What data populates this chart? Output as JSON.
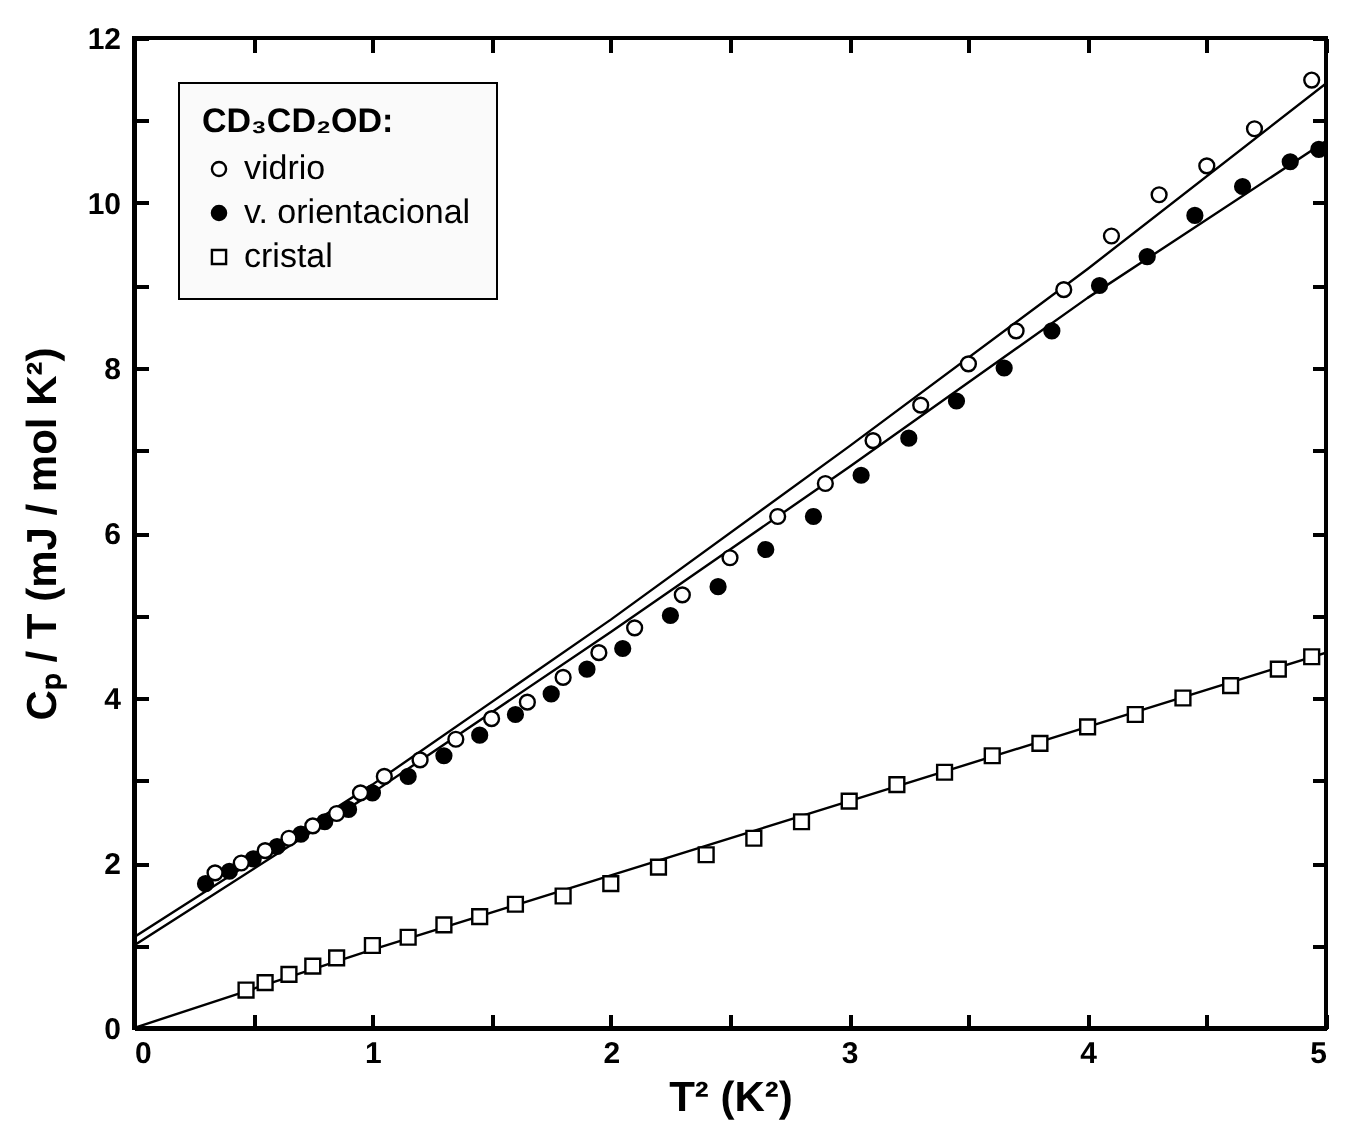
{
  "chart_data": {
    "type": "scatter",
    "xlabel": "T² (K²)",
    "ylabel": "Cₚ / T (mJ / mol K²)",
    "legend_title": "CD₃CD₂OD:",
    "legend": "top left",
    "grid": false,
    "xlim": [
      0,
      5
    ],
    "xticks": [
      0,
      {
        "value": 0.5,
        "label": null
      },
      1,
      {
        "value": 1.5,
        "label": null
      },
      2,
      {
        "value": 2.5,
        "label": null
      },
      3,
      {
        "value": 3.5,
        "label": null
      },
      4,
      {
        "value": 4.5,
        "label": null
      },
      5
    ],
    "ylim": [
      0,
      12
    ],
    "yticks": [
      0,
      {
        "value": 1,
        "label": null
      },
      2,
      {
        "value": 3,
        "label": null
      },
      4,
      {
        "value": 5,
        "label": null
      },
      6,
      {
        "value": 7,
        "label": null
      },
      8,
      {
        "value": 9,
        "label": null
      },
      10,
      {
        "value": 11,
        "label": null
      },
      12
    ],
    "series": [
      {
        "name": "vidrio",
        "marker": "circle",
        "color": "#ffffff",
        "x": [
          0.34,
          0.45,
          0.55,
          0.65,
          0.75,
          0.85,
          0.95,
          1.05,
          1.2,
          1.35,
          1.5,
          1.65,
          1.8,
          1.95,
          2.1,
          2.3,
          2.5,
          2.7,
          2.9,
          3.1,
          3.3,
          3.5,
          3.7,
          3.9,
          4.1,
          4.3,
          4.5,
          4.7,
          4.94
        ],
        "values": [
          1.88,
          2.0,
          2.15,
          2.3,
          2.45,
          2.6,
          2.85,
          3.05,
          3.25,
          3.5,
          3.75,
          3.95,
          4.25,
          4.55,
          4.85,
          5.25,
          5.7,
          6.2,
          6.6,
          7.12,
          7.55,
          8.05,
          8.45,
          8.95,
          9.6,
          10.1,
          10.45,
          10.9,
          11.49
        ]
      },
      {
        "name": "v. orientacional",
        "marker": "circle",
        "color": "#000000",
        "x": [
          0.3,
          0.4,
          0.5,
          0.6,
          0.7,
          0.8,
          0.9,
          1.0,
          1.15,
          1.3,
          1.45,
          1.6,
          1.75,
          1.9,
          2.05,
          2.25,
          2.45,
          2.65,
          2.85,
          3.05,
          3.25,
          3.45,
          3.65,
          3.85,
          4.05,
          4.25,
          4.45,
          4.65,
          4.85,
          4.97
        ],
        "values": [
          1.75,
          1.9,
          2.05,
          2.2,
          2.35,
          2.5,
          2.65,
          2.85,
          3.05,
          3.3,
          3.55,
          3.8,
          4.05,
          4.35,
          4.6,
          5.0,
          5.35,
          5.8,
          6.2,
          6.7,
          7.15,
          7.6,
          8.0,
          8.45,
          9.0,
          9.35,
          9.85,
          10.2,
          10.5,
          10.65
        ]
      },
      {
        "name": "cristal",
        "marker": "square",
        "color": "#ffffff",
        "x": [
          0.47,
          0.55,
          0.65,
          0.75,
          0.85,
          1.0,
          1.15,
          1.3,
          1.45,
          1.6,
          1.8,
          2.0,
          2.2,
          2.4,
          2.6,
          2.8,
          3.0,
          3.2,
          3.4,
          3.6,
          3.8,
          4.0,
          4.2,
          4.4,
          4.6,
          4.8,
          4.94
        ],
        "values": [
          0.46,
          0.55,
          0.65,
          0.75,
          0.85,
          1.0,
          1.1,
          1.25,
          1.35,
          1.5,
          1.6,
          1.75,
          1.95,
          2.1,
          2.3,
          2.5,
          2.75,
          2.95,
          3.1,
          3.3,
          3.45,
          3.65,
          3.8,
          4.0,
          4.15,
          4.35,
          4.5
        ]
      },
      {
        "type": "line",
        "color": "#000000",
        "x": [
          0,
          1,
          2,
          3,
          4,
          5
        ],
        "values": [
          1.1,
          2.95,
          4.95,
          7.05,
          9.2,
          11.45
        ]
      },
      {
        "type": "line",
        "color": "#000000",
        "x": [
          0,
          1,
          2,
          3,
          4,
          5
        ],
        "values": [
          1.0,
          2.85,
          4.8,
          6.8,
          8.85,
          10.75
        ]
      },
      {
        "type": "line",
        "color": "#000000",
        "x": [
          0,
          1,
          2,
          3,
          4,
          5
        ],
        "values": [
          0,
          0.95,
          1.85,
          2.75,
          3.65,
          4.55
        ]
      }
    ]
  }
}
